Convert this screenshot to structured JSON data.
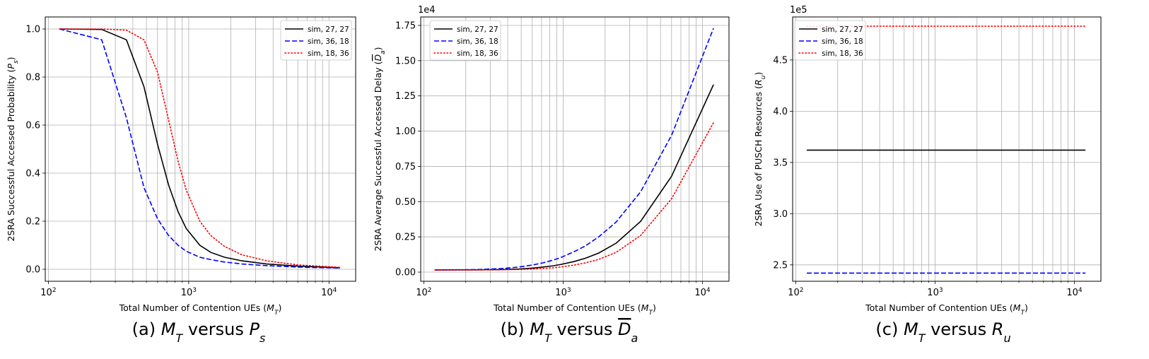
{
  "chart_data": [
    {
      "type": "line",
      "caption": "(a) M_T versus P_s",
      "caption_parts": [
        "(a) ",
        "M",
        "T",
        " versus ",
        "P",
        "s"
      ],
      "xlabel": "Total Number of Contention UEs (M_T)",
      "xlabel_parts": [
        "Total Number of Contention UEs (",
        "M",
        "T",
        ")"
      ],
      "ylabel": "2SRA Successful Accessed Probability (P_s)",
      "ylabel_parts": [
        "2SRA Successful Accessed Probability (",
        "P",
        "s",
        ")"
      ],
      "xscale": "log",
      "xlim": [
        95,
        15500
      ],
      "ylim": [
        -0.05,
        1.05
      ],
      "yticks": [
        0.0,
        0.2,
        0.4,
        0.6,
        0.8,
        1.0
      ],
      "ytick_labels": [
        "0.0",
        "0.2",
        "0.4",
        "0.6",
        "0.8",
        "1.0"
      ],
      "offset_label": "",
      "grid": true,
      "legend_position": "top-right",
      "series": [
        {
          "name": "sim, 27, 27",
          "color": "#000000",
          "dash": "solid",
          "x": [
            120,
            240,
            360,
            480,
            600,
            720,
            840,
            960,
            1200,
            1440,
            1800,
            2400,
            3600,
            6000,
            12000
          ],
          "y": [
            1.0,
            0.998,
            0.955,
            0.76,
            0.52,
            0.35,
            0.24,
            0.17,
            0.1,
            0.07,
            0.05,
            0.035,
            0.022,
            0.013,
            0.006
          ]
        },
        {
          "name": "sim, 36, 18",
          "color": "#0000ff",
          "dash": "dashed",
          "x": [
            120,
            240,
            360,
            480,
            600,
            720,
            840,
            960,
            1200,
            1440,
            1800,
            2400,
            3600,
            6000,
            12000
          ],
          "y": [
            1.0,
            0.955,
            0.63,
            0.34,
            0.21,
            0.14,
            0.1,
            0.075,
            0.05,
            0.04,
            0.03,
            0.022,
            0.015,
            0.009,
            0.005
          ]
        },
        {
          "name": "sim, 18, 36",
          "color": "#ff0000",
          "dash": "dotted",
          "x": [
            120,
            240,
            360,
            480,
            600,
            720,
            840,
            960,
            1200,
            1440,
            1800,
            2400,
            3600,
            6000,
            12000
          ],
          "y": [
            1.0,
            1.0,
            0.995,
            0.955,
            0.82,
            0.62,
            0.45,
            0.33,
            0.2,
            0.14,
            0.095,
            0.06,
            0.035,
            0.018,
            0.008
          ]
        }
      ]
    },
    {
      "type": "line",
      "caption": "(b) M_T versus D_a",
      "caption_parts": [
        "(b) ",
        "M",
        "T",
        " versus ",
        "D",
        "a"
      ],
      "xlabel": "Total Number of Contention UEs (M_T)",
      "xlabel_parts": [
        "Total Number of Contention UEs (",
        "M",
        "T",
        ")"
      ],
      "ylabel": "2SRA Average Successful Accessed Delay (D_a)",
      "ylabel_parts": [
        "2SRA Average Successful Accessed Delay (",
        "D",
        "a",
        ")"
      ],
      "xscale": "log",
      "xlim": [
        95,
        15500
      ],
      "ylim": [
        -650,
        18100
      ],
      "yticks": [
        0,
        2500,
        5000,
        7500,
        10000,
        12500,
        15000,
        17500
      ],
      "ytick_labels": [
        "0.00",
        "0.25",
        "0.50",
        "0.75",
        "1.00",
        "1.25",
        "1.50",
        "1.75"
      ],
      "offset_label": "1e4",
      "grid": true,
      "legend_position": "top-left",
      "series": [
        {
          "name": "sim, 27, 27",
          "color": "#000000",
          "dash": "solid",
          "x": [
            120,
            240,
            360,
            480,
            600,
            720,
            840,
            960,
            1200,
            1440,
            1800,
            2400,
            3600,
            6000,
            12000
          ],
          "y": [
            150,
            160,
            180,
            220,
            280,
            360,
            440,
            540,
            750,
            980,
            1350,
            2050,
            3600,
            6800,
            13300
          ]
        },
        {
          "name": "sim, 36, 18",
          "color": "#0000ff",
          "dash": "dashed",
          "x": [
            120,
            240,
            360,
            480,
            600,
            720,
            840,
            960,
            1200,
            1440,
            1800,
            2400,
            3600,
            6000,
            12000
          ],
          "y": [
            150,
            180,
            250,
            360,
            500,
            660,
            840,
            1030,
            1450,
            1850,
            2500,
            3550,
            5700,
            9700,
            17300
          ]
        },
        {
          "name": "sim, 18, 36",
          "color": "#ff0000",
          "dash": "dotted",
          "x": [
            120,
            240,
            360,
            480,
            600,
            720,
            840,
            960,
            1200,
            1440,
            1800,
            2400,
            3600,
            6000,
            12000
          ],
          "y": [
            150,
            155,
            165,
            185,
            215,
            255,
            300,
            360,
            500,
            650,
            900,
            1400,
            2600,
            5200,
            10600
          ]
        }
      ]
    },
    {
      "type": "line",
      "caption": "(c) M_T versus R_u",
      "caption_parts": [
        "(c) ",
        "M",
        "T",
        " versus ",
        "R",
        "u"
      ],
      "xlabel": "Total Number of Contention UEs (M_T)",
      "xlabel_parts": [
        "Total Number of Contention UEs (",
        "M",
        "T",
        ")"
      ],
      "ylabel": "2SRA Use of PUSCH Resources (R_u)",
      "ylabel_parts": [
        "2SRA Use of PUSCH Resources (",
        "R",
        "u",
        ")"
      ],
      "xscale": "log",
      "xlim": [
        95,
        15500
      ],
      "ylim": [
        234000,
        492000
      ],
      "yticks": [
        250000,
        300000,
        350000,
        400000,
        450000
      ],
      "ytick_labels": [
        "2.5",
        "3.0",
        "3.5",
        "4.0",
        "4.5"
      ],
      "offset_label": "1e5",
      "grid": true,
      "legend_position": "top-left",
      "series": [
        {
          "name": "sim, 27, 27",
          "color": "#000000",
          "dash": "solid",
          "x": [
            120,
            12000
          ],
          "y": [
            362000,
            362000
          ]
        },
        {
          "name": "sim, 36, 18",
          "color": "#0000ff",
          "dash": "dashed",
          "x": [
            120,
            12000
          ],
          "y": [
            242000,
            242000
          ]
        },
        {
          "name": "sim, 18, 36",
          "color": "#ff0000",
          "dash": "dotted",
          "x": [
            120,
            12000
          ],
          "y": [
            483000,
            483000
          ]
        }
      ]
    }
  ]
}
